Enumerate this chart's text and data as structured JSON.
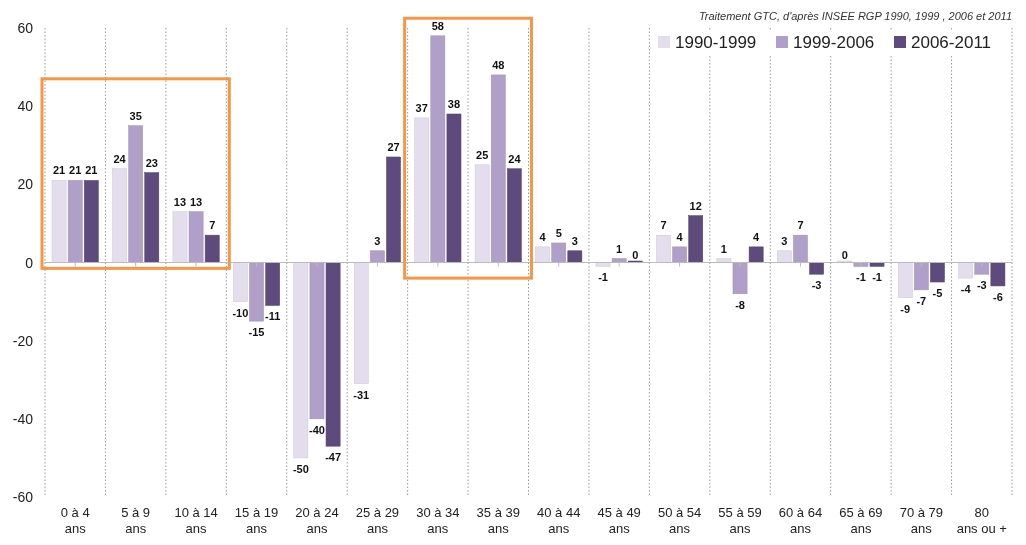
{
  "chart_data": {
    "type": "bar",
    "categories": [
      "0 à 4\nans",
      "5 à 9\nans",
      "10 à 14\nans",
      "15 à 19\nans",
      "20 à 24\nans",
      "25 à 29\nans",
      "30 à 34\nans",
      "35 à 39\nans",
      "40 à 44\nans",
      "45 à 49\nans",
      "50 à 54\nans",
      "55 à 59\nans",
      "60 à 64\nans",
      "65 à 69\nans",
      "70 à 79\nans",
      "80\nans ou +"
    ],
    "series": [
      {
        "name": "1990-1999",
        "color": "#e3dded",
        "values": [
          21,
          24,
          13,
          -10,
          -50,
          -31,
          37,
          25,
          4,
          -1,
          7,
          1,
          3,
          0,
          -9,
          -4
        ]
      },
      {
        "name": "1999-2006",
        "color": "#b09fc8",
        "values": [
          21,
          35,
          13,
          -15,
          -40,
          3,
          58,
          48,
          5,
          1,
          4,
          -8,
          7,
          -1,
          -7,
          -3
        ]
      },
      {
        "name": "2006-2011",
        "color": "#5e4a7c",
        "values": [
          21,
          23,
          7,
          -11,
          -47,
          27,
          38,
          24,
          3,
          0,
          12,
          4,
          -3,
          -1,
          -5,
          -6
        ]
      }
    ],
    "ylim": [
      -60,
      60
    ],
    "yticks": [
      -60,
      -40,
      -20,
      0,
      20,
      40,
      60
    ],
    "grid": "x",
    "legend": "top right",
    "data_labels": true,
    "annotations": [
      "Traitement GTC, d'après INSEE RGP 1990, 1999 , 2006 et 2011"
    ]
  }
}
